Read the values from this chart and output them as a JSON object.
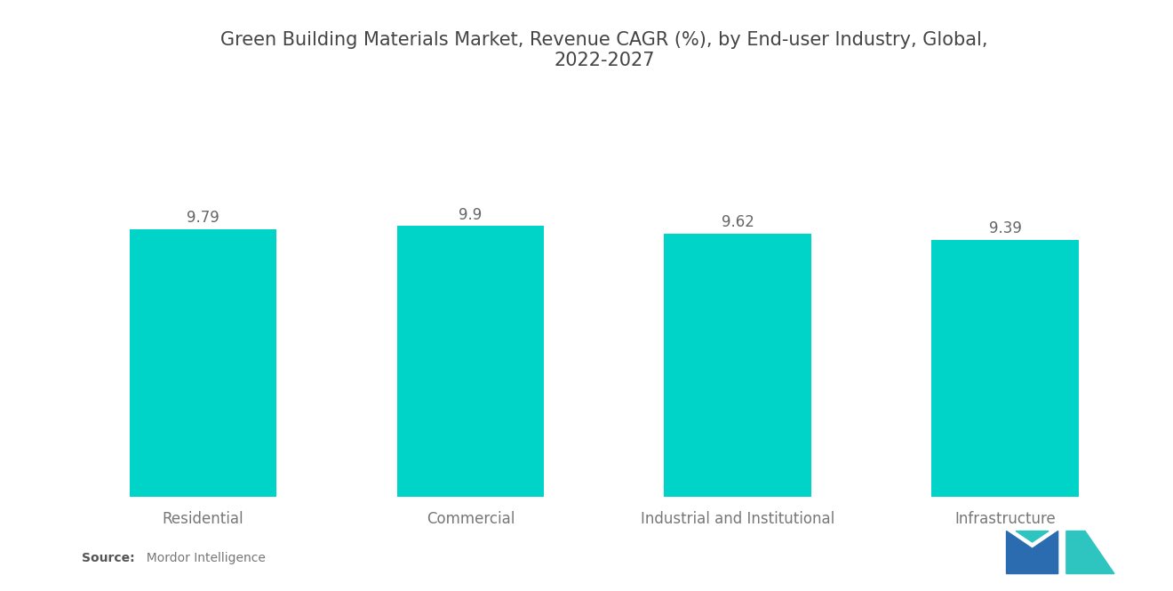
{
  "title": "Green Building Materials Market, Revenue CAGR (%), by End-user Industry, Global,\n2022-2027",
  "categories": [
    "Residential",
    "Commercial",
    "Industrial and Institutional",
    "Infrastructure"
  ],
  "values": [
    9.79,
    9.9,
    9.62,
    9.39
  ],
  "bar_color": "#00D4C8",
  "value_labels": [
    "9.79",
    "9.9",
    "9.62",
    "9.39"
  ],
  "source_bold": "Source:",
  "source_normal": "  Mordor Intelligence",
  "background_color": "#ffffff",
  "title_fontsize": 15,
  "label_fontsize": 12,
  "value_fontsize": 12,
  "ylim": [
    0,
    14.5
  ],
  "bar_width": 0.55,
  "logo_blue": "#2B6CB0",
  "logo_teal": "#2EC4C0"
}
